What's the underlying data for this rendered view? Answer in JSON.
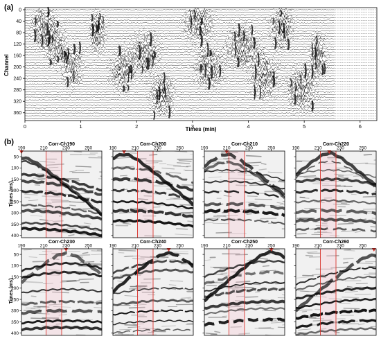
{
  "chart_data": [
    {
      "type": "heatmap",
      "panel_label": "(a)",
      "xlabel": "Times (min)",
      "ylabel": "Channel",
      "xlim": [
        0,
        6.3
      ],
      "ylim": [
        0,
        380
      ],
      "y_reversed": true,
      "x_ticks": [
        "0",
        "1",
        "2",
        "3",
        "4",
        "5",
        "6"
      ],
      "x_tick_values": [
        0,
        1,
        2,
        3,
        4,
        5,
        6
      ],
      "y_ticks": [
        "0",
        "40",
        "80",
        "120",
        "160",
        "200",
        "240",
        "280",
        "320",
        "360"
      ],
      "y_tick_values": [
        0,
        40,
        80,
        120,
        160,
        200,
        240,
        280,
        320,
        360
      ],
      "data_end_min": 5.55,
      "event_clusters": [
        {
          "t": 0.35,
          "ch": 60,
          "w": 0.22
        },
        {
          "t": 0.55,
          "ch": 120,
          "w": 0.2
        },
        {
          "t": 0.85,
          "ch": 200,
          "w": 0.18
        },
        {
          "t": 1.3,
          "ch": 80,
          "w": 0.15
        },
        {
          "t": 1.75,
          "ch": 210,
          "w": 0.2
        },
        {
          "t": 2.15,
          "ch": 150,
          "w": 0.25
        },
        {
          "t": 2.45,
          "ch": 300,
          "w": 0.2
        },
        {
          "t": 3.1,
          "ch": 40,
          "w": 0.25
        },
        {
          "t": 3.3,
          "ch": 200,
          "w": 0.25
        },
        {
          "t": 3.9,
          "ch": 130,
          "w": 0.3
        },
        {
          "t": 4.3,
          "ch": 230,
          "w": 0.25
        },
        {
          "t": 4.6,
          "ch": 60,
          "w": 0.2
        },
        {
          "t": 4.95,
          "ch": 280,
          "w": 0.25
        },
        {
          "t": 5.25,
          "ch": 160,
          "w": 0.15
        }
      ]
    },
    {
      "type": "heatmap",
      "panel_label": "(b)",
      "ylabel": "Times (ms)",
      "x_ticks": [
        "190",
        "210",
        "230",
        "250"
      ],
      "x_tick_values": [
        190,
        210,
        230,
        250
      ],
      "xlim": [
        190,
        262
      ],
      "ylim": [
        25,
        410
      ],
      "y_reversed": true,
      "y_ticks": [
        "50",
        "100",
        "150",
        "200",
        "250",
        "300",
        "350",
        "400"
      ],
      "y_tick_values": [
        50,
        100,
        150,
        200,
        250,
        300,
        350,
        400
      ],
      "window_lines": [
        212,
        226
      ],
      "panels": [
        {
          "title": "Corr-Ch190",
          "source": 190,
          "reflectors": [
            55,
            70,
            130,
            160,
            205,
            265,
            290,
            345,
            370
          ]
        },
        {
          "title": "Corr-Ch200",
          "source": 200,
          "reflectors": [
            40,
            100,
            150,
            200,
            250,
            290,
            335
          ]
        },
        {
          "title": "Corr-Ch210",
          "source": 210,
          "reflectors": [
            40,
            75,
            110,
            160,
            205,
            260,
            290,
            330
          ]
        },
        {
          "title": "Corr-Ch220",
          "source": 220,
          "reflectors": [
            35,
            70,
            110,
            150,
            200,
            245,
            290,
            330,
            370
          ]
        },
        {
          "title": "Corr-Ch230",
          "source": 230,
          "reflectors": [
            45,
            90,
            130,
            205,
            260,
            300,
            345,
            375
          ]
        },
        {
          "title": "Corr-Ch240",
          "source": 240,
          "reflectors": [
            45,
            80,
            120,
            200,
            255,
            300,
            345,
            385
          ]
        },
        {
          "title": "Corr-Ch250",
          "source": 250,
          "reflectors": [
            40,
            80,
            130,
            175,
            205,
            260,
            290,
            340
          ]
        },
        {
          "title": "Corr-Ch260",
          "source": 260,
          "reflectors": [
            55,
            110,
            150,
            200,
            250,
            300,
            345,
            380
          ]
        }
      ]
    }
  ]
}
